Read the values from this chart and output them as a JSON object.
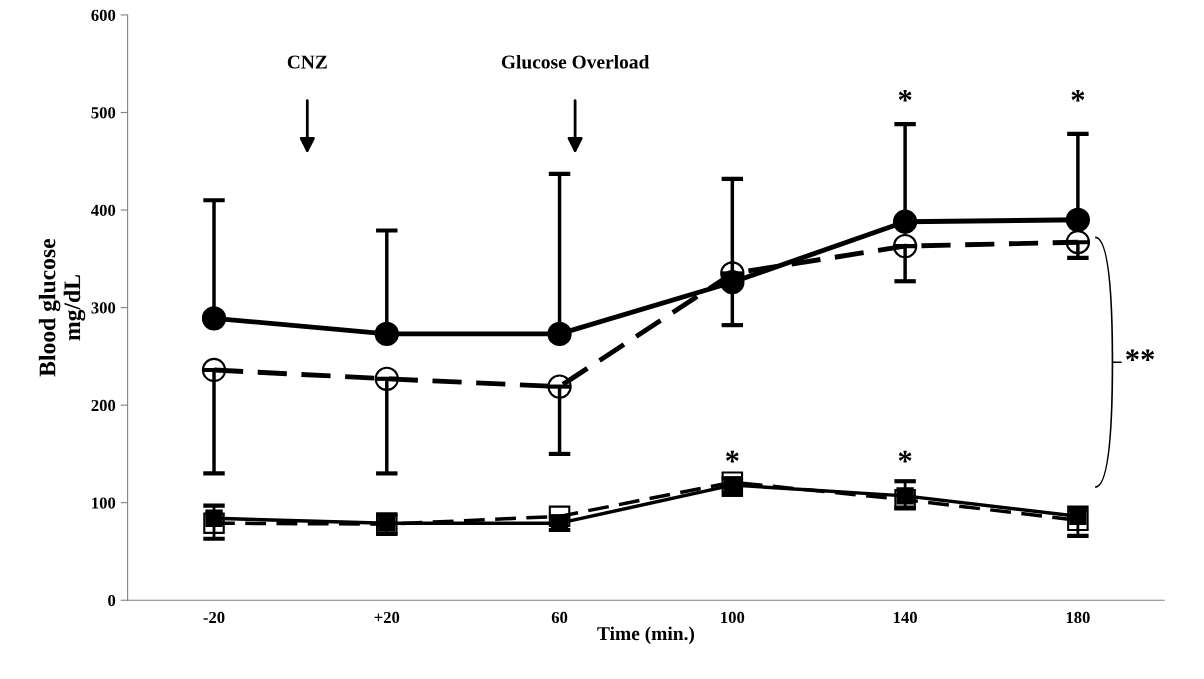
{
  "chart_data": {
    "type": "line",
    "xlabel": "Time (min.)",
    "ylabel": "Blood glucose\nmg/dL",
    "categories": [
      "-20",
      "+20",
      "60",
      "100",
      "140",
      "180"
    ],
    "series": [
      {
        "color": "#000000",
        "marker": "circle",
        "line_style": "solid",
        "values": [
          289,
          273,
          273,
          326,
          388,
          390
        ],
        "errors": [
          [
            289,
            410
          ],
          [
            273,
            379
          ],
          [
            273,
            437
          ],
          [
            326,
            432
          ],
          [
            388,
            488
          ],
          [
            390,
            478
          ]
        ]
      },
      {
        "color": "#000000",
        "marker": "circle",
        "line_style": "dashed",
        "values": [
          236,
          227,
          219,
          335,
          363,
          367
        ],
        "errors": [
          [
            130,
            236
          ],
          [
            130,
            227
          ],
          [
            150,
            219
          ],
          [
            282,
            335
          ],
          [
            327,
            363
          ],
          [
            351,
            367
          ]
        ]
      },
      {
        "color": "#000000",
        "marker": "square",
        "line_style": "solid",
        "values": [
          84,
          79,
          79,
          118,
          107,
          86
        ],
        "errors": [
          [
            63,
            97
          ],
          [
            68,
            88
          ],
          [
            72,
            86
          ],
          [
            108,
            125
          ],
          [
            95,
            122
          ],
          [
            66,
            95
          ]
        ]
      },
      {
        "color": "#000000",
        "marker": "square",
        "line_style": "dashed",
        "values": [
          79,
          78,
          86,
          121,
          103,
          82
        ]
      }
    ],
    "ylim": [
      0,
      600
    ],
    "yticks": [
      0,
      100,
      200,
      300,
      400,
      500,
      600
    ],
    "grid": false,
    "legend": false,
    "annotations": [
      "CNZ",
      "Glucose Overload",
      "*",
      "*",
      "*",
      "*",
      "**"
    ]
  }
}
